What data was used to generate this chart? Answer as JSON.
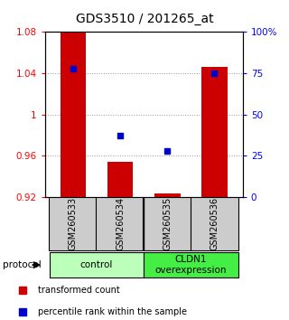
{
  "title": "GDS3510 / 201265_at",
  "samples": [
    "GSM260533",
    "GSM260534",
    "GSM260535",
    "GSM260536"
  ],
  "bar_baseline": 0.92,
  "bar_values": [
    1.082,
    0.954,
    0.923,
    1.046
  ],
  "percentile_values": [
    78,
    37,
    28,
    75
  ],
  "ylim_left": [
    0.92,
    1.08
  ],
  "ylim_right": [
    0,
    100
  ],
  "yticks_left": [
    0.92,
    0.96,
    1.0,
    1.04,
    1.08
  ],
  "ytick_labels_left": [
    "0.92",
    "0.96",
    "1",
    "1.04",
    "1.08"
  ],
  "yticks_right": [
    0,
    25,
    50,
    75,
    100
  ],
  "ytick_labels_right": [
    "0",
    "25",
    "50",
    "75",
    "100%"
  ],
  "bar_color": "#cc0000",
  "blue_color": "#0000cc",
  "bar_width": 0.55,
  "groups": [
    {
      "label": "control",
      "samples": [
        0,
        1
      ],
      "color": "#bbffbb"
    },
    {
      "label": "CLDN1\noverexpression",
      "samples": [
        2,
        3
      ],
      "color": "#44ee44"
    }
  ],
  "legend_items": [
    {
      "color": "#cc0000",
      "label": "transformed count"
    },
    {
      "color": "#0000cc",
      "label": "percentile rank within the sample"
    }
  ],
  "protocol_label": "protocol",
  "sample_bg_color": "#cccccc",
  "grid_color": "#999999",
  "title_fontsize": 10,
  "tick_fontsize": 7.5,
  "label_fontsize": 7,
  "group_fontsize": 7.5
}
